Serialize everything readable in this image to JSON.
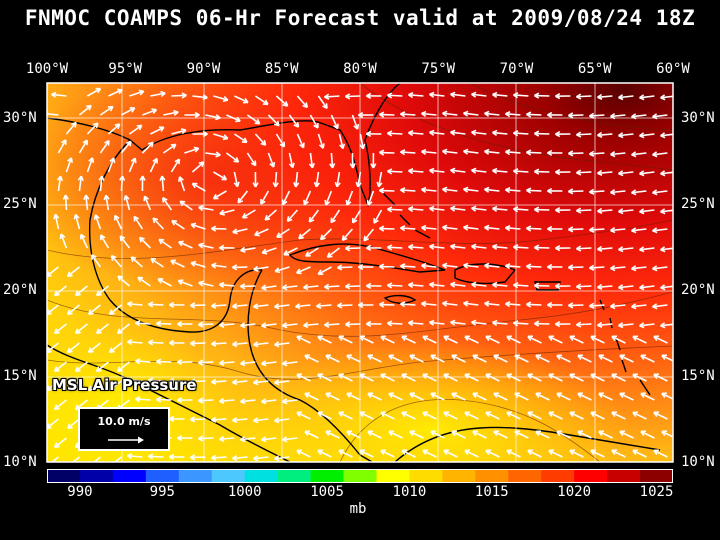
{
  "title": "FNMOC COAMPS 06-Hr Forecast valid at 2009/08/24 18Z",
  "longitude_labels": [
    "100°W",
    "95°W",
    "90°W",
    "85°W",
    "80°W",
    "75°W",
    "70°W",
    "65°W",
    "60°W"
  ],
  "latitude_labels": [
    "30°N",
    "25°N",
    "20°N",
    "15°N",
    "10°N"
  ],
  "map": {
    "lon_range": [
      -100,
      -60
    ],
    "lat_range": [
      10,
      32
    ],
    "field": "MSL Air Pressure",
    "units": "mb",
    "pressure_notes": "Highest (~1022-1025 mb) in the northeast (Atlantic); ~1014-1018 mb over Gulf of Mexico; lowest (~1007-1010 mb) over Central America and the southern Caribbean.",
    "wind_vectors": "easterly trade winds across the Caribbean, anticyclonic flow over the Gulf of Mexico"
  },
  "overlay_label": "MSL Air Pressure",
  "reference_vector": {
    "label": "10.0 m/s",
    "speed": 10.0
  },
  "colorbar": {
    "levels": [
      988,
      990,
      992,
      994,
      996,
      998,
      1000,
      1002,
      1004,
      1006,
      1008,
      1010,
      1012,
      1014,
      1016,
      1018,
      1020,
      1022,
      1024,
      1026
    ],
    "colors": [
      "#000066",
      "#0000a8",
      "#0000ff",
      "#1f5fff",
      "#3c96ff",
      "#4cc8ff",
      "#00e0e0",
      "#00ee80",
      "#00ee00",
      "#80ff00",
      "#ffff00",
      "#ffdc00",
      "#ffb400",
      "#ff9000",
      "#ff6600",
      "#ff3c00",
      "#ff0000",
      "#c80000",
      "#8c0000"
    ],
    "tick_labels": [
      "990",
      "995",
      "1000",
      "1005",
      "1010",
      "1015",
      "1020",
      "1025"
    ],
    "tick_values": [
      990,
      995,
      1000,
      1005,
      1010,
      1015,
      1020,
      1025
    ],
    "unit": "mb"
  }
}
